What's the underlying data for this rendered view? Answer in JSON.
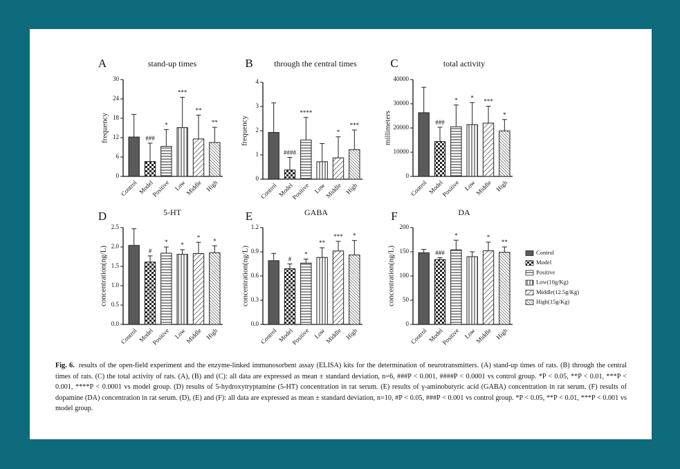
{
  "chart_data": [
    {
      "type": "bar",
      "panel": "A",
      "title": "stand-up times",
      "ylabel": "frequency",
      "categories": [
        "Control",
        "Model",
        "Positive",
        "Low",
        "Middle",
        "High"
      ],
      "values": [
        12.2,
        4.6,
        9.3,
        15.1,
        11.6,
        10.5
      ],
      "errors": [
        7.0,
        5.7,
        5.2,
        9.4,
        7.4,
        4.7
      ],
      "annotations": [
        null,
        "###",
        "*",
        "***",
        "**",
        "**"
      ],
      "ylim": [
        0,
        30
      ],
      "yticks": [
        0,
        6,
        12,
        18,
        24,
        30
      ]
    },
    {
      "type": "bar",
      "panel": "B",
      "title": "through the central times",
      "ylabel": "frequency",
      "categories": [
        "Control",
        "Model",
        "Positive",
        "Low",
        "Middle",
        "High"
      ],
      "values": [
        1.93,
        0.38,
        1.62,
        0.72,
        0.88,
        1.22
      ],
      "errors": [
        1.22,
        0.52,
        0.93,
        0.75,
        0.87,
        0.81
      ],
      "annotations": [
        null,
        "####",
        "****",
        null,
        "*",
        "***"
      ],
      "ylim": [
        0,
        4
      ],
      "yticks": [
        0,
        1,
        2,
        3,
        4
      ]
    },
    {
      "type": "bar",
      "panel": "C",
      "title": "total activity",
      "ylabel": "millimeters",
      "categories": [
        "Control",
        "Model",
        "Positive",
        "Low",
        "Middle",
        "High"
      ],
      "values": [
        26300,
        14400,
        20500,
        21400,
        22000,
        18800
      ],
      "errors": [
        10500,
        5900,
        9000,
        9100,
        7000,
        4700
      ],
      "annotations": [
        null,
        "###",
        "*",
        "*",
        "***",
        "*"
      ],
      "ylim": [
        0,
        40000
      ],
      "yticks": [
        0,
        10000,
        20000,
        30000,
        40000
      ]
    },
    {
      "type": "bar",
      "panel": "D",
      "title": "5-HT",
      "ylabel": "concentration(ng/L)",
      "categories": [
        "Control",
        "Model",
        "Positive",
        "Low",
        "Middle",
        "High"
      ],
      "values": [
        2.04,
        1.61,
        1.84,
        1.81,
        1.83,
        1.85
      ],
      "errors": [
        0.43,
        0.16,
        0.16,
        0.12,
        0.29,
        0.18
      ],
      "annotations": [
        null,
        "#",
        "*",
        "*",
        "*",
        "*"
      ],
      "ylim": [
        0,
        2.5
      ],
      "yticks": [
        {
          "value": 0,
          "label": "0.0"
        },
        0.5,
        {
          "value": 1,
          "label": "1.0"
        },
        1.5,
        {
          "value": 2,
          "label": "2.0"
        },
        2.5
      ]
    },
    {
      "type": "bar",
      "panel": "E",
      "title": "GABA",
      "ylabel": "concentration(ng/L)",
      "categories": [
        "Control",
        "Model",
        "Positive",
        "Low",
        "Middle",
        "High"
      ],
      "values": [
        0.79,
        0.69,
        0.76,
        0.83,
        0.91,
        0.86
      ],
      "errors": [
        0.09,
        0.06,
        0.05,
        0.12,
        0.12,
        0.18
      ],
      "annotations": [
        null,
        "#",
        "*",
        "**",
        "***",
        "*"
      ],
      "ylim": [
        0,
        1.2
      ],
      "yticks": [
        {
          "value": 0,
          "label": "0.0"
        },
        0.3,
        0.6,
        0.9,
        1.2
      ]
    },
    {
      "type": "bar",
      "panel": "F",
      "title": "DA",
      "ylabel": "concentration(ng/L)",
      "categories": [
        "Control",
        "Model",
        "Positive",
        "Low",
        "Middle",
        "High"
      ],
      "values": [
        148,
        134,
        154,
        140,
        152,
        149
      ],
      "errors": [
        7,
        4,
        20,
        10,
        18,
        11
      ],
      "annotations": [
        null,
        "###",
        "*",
        null,
        "*",
        "**"
      ],
      "ylim": [
        0,
        200
      ],
      "yticks": [
        0,
        50,
        100,
        150,
        200
      ]
    }
  ],
  "legend": {
    "items": [
      "Control",
      "Model",
      "Positive",
      "Low(10g/Kg)",
      "Middle(12.5g/Kg)",
      "High(15g/Kg)"
    ],
    "patterns": [
      "solid",
      "checker",
      "horizontal",
      "vertical",
      "diagonal",
      "diagonal-dense"
    ]
  },
  "caption": {
    "label": "Fig. 6.",
    "text": "results of the open-field experiment and the enzyme-linked immunosorbent assay (ELISA) kits for the determination of neurotransmitters. (A) stand-up times of rats. (B) through the central times of rats. (C) the total activity of rats. (A), (B) and (C): all data are expressed as mean ± standard deviation, n=6, ###P < 0.001, ####P < 0.0001 vs control group. *P < 0.05, **P < 0.01, ***P < 0.001, ****P < 0.0001 vs model group. (D) results of 5-hydroxytryptamine (5-HT) concentration in rat serum. (E) results of γ-aminobutyric acid (GABA) concentration in rat serum. (F) results of dopamine (DA) concentration in rat serum. (D), (E) and (F): all data are expressed as mean ± standard deviation, n=10, #P < 0.05, ###P < 0.001 vs control group. *P < 0.05, **P < 0.01, ***P < 0.001 vs model group."
  }
}
